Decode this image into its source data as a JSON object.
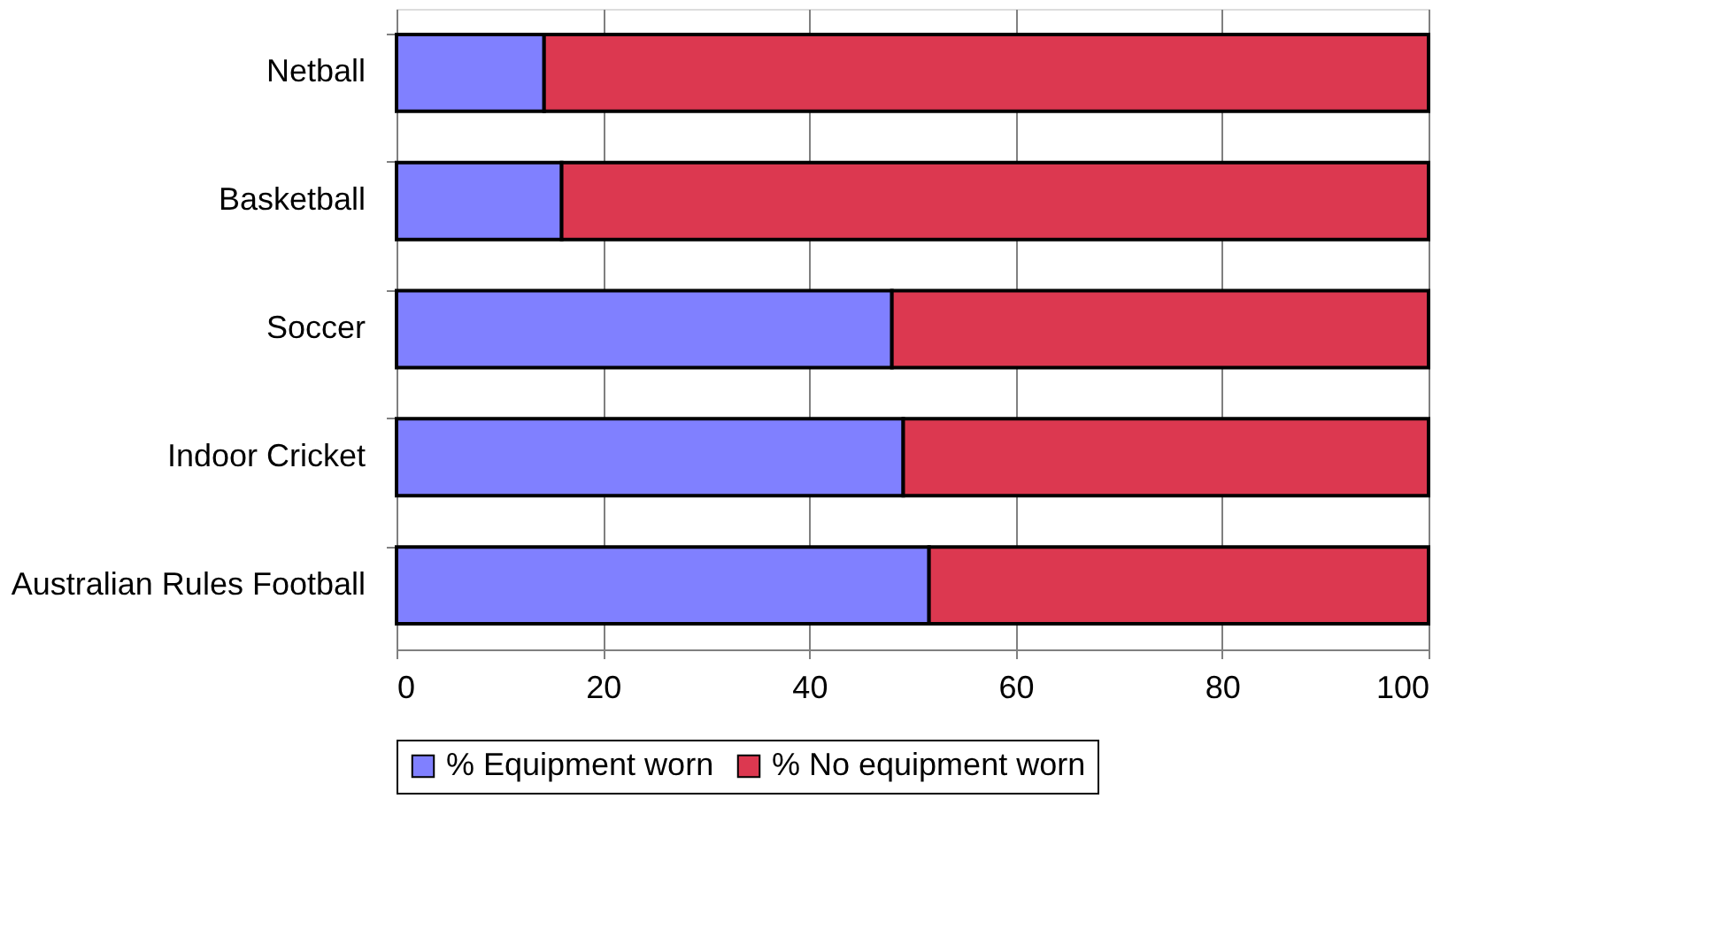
{
  "chart_data": {
    "type": "bar",
    "orientation": "horizontal",
    "stacked": true,
    "categories": [
      "Netball",
      "Basketball",
      "Soccer",
      "Indoor Cricket",
      "Australian Rules Football"
    ],
    "series": [
      {
        "name": "% Equipment worn",
        "color": "#8080ff",
        "values": [
          14.3,
          16.0,
          48.0,
          49.1,
          51.6
        ]
      },
      {
        "name": "% No equipment worn",
        "color": "#dc3850",
        "values": [
          85.7,
          84.0,
          52.0,
          50.9,
          48.4
        ]
      }
    ],
    "xlim": [
      0,
      100
    ],
    "xticks": [
      0,
      20,
      40,
      60,
      80,
      100
    ],
    "grid": "x",
    "legend": "bottom"
  }
}
